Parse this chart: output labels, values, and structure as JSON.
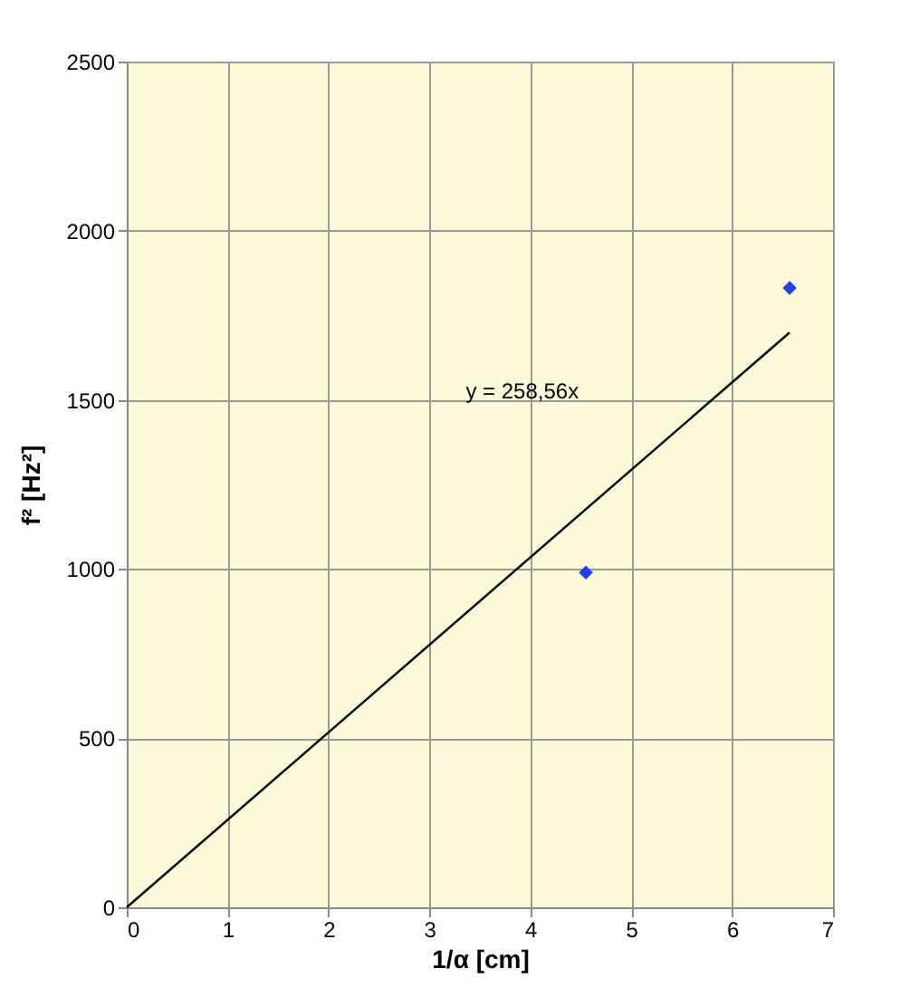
{
  "chart_data": {
    "type": "scatter",
    "xlabel": "1/α [cm]",
    "ylabel": "f² [Hz²]",
    "xlim": [
      0,
      7
    ],
    "xticks": [
      0,
      1,
      2,
      3,
      4,
      5,
      6,
      7
    ],
    "ylim": [
      0,
      2500
    ],
    "yticks": [
      0,
      500,
      1000,
      1500,
      2000,
      2500
    ],
    "grid": true,
    "series": [
      {
        "marker": "diamond",
        "color": "#1f3fff",
        "x": [
          4.55,
          6.57
        ],
        "values": [
          990,
          1831
        ]
      },
      {
        "type": "line",
        "marker": "none",
        "color": "#000000",
        "x": [
          0,
          6.57
        ],
        "values": [
          0,
          1699
        ]
      }
    ],
    "annotations": [
      "y = 258,56x"
    ]
  }
}
